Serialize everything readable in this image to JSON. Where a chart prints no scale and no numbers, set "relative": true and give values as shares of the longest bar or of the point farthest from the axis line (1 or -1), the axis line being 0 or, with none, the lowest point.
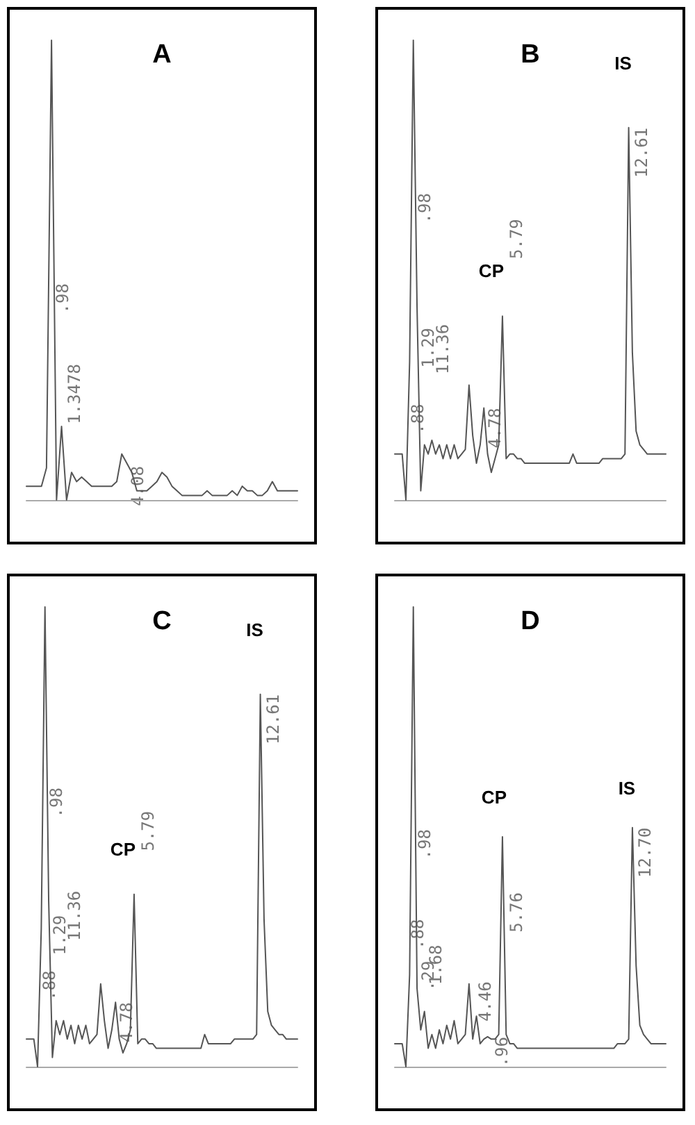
{
  "chart_data": [
    {
      "type": "line",
      "title": "A",
      "relative": true,
      "marker": "none",
      "color": "#555555",
      "categories": [
        null,
        null,
        null,
        null,
        null,
        null,
        null,
        null,
        null,
        null,
        null,
        null,
        null,
        null,
        null,
        null,
        null,
        null,
        null,
        null,
        null,
        null,
        null,
        null,
        null,
        null,
        null,
        null,
        null,
        null,
        null,
        null,
        null,
        null,
        null,
        null,
        null,
        null,
        null,
        null,
        null,
        null,
        null,
        null,
        null,
        null,
        null,
        null,
        null,
        null,
        null,
        null,
        null,
        null,
        null
      ],
      "values": [
        0.03,
        0.03,
        0.03,
        0.03,
        0.07,
        1.0,
        0.0,
        0.16,
        0.0,
        0.06,
        0.04,
        0.05,
        0.04,
        0.03,
        0.03,
        0.03,
        0.03,
        0.03,
        0.04,
        0.1,
        0.08,
        0.06,
        0.02,
        0.02,
        0.02,
        0.03,
        0.04,
        0.06,
        0.05,
        0.03,
        0.02,
        0.01,
        0.01,
        0.01,
        0.01,
        0.01,
        0.02,
        0.01,
        0.01,
        0.01,
        0.01,
        0.02,
        0.01,
        0.03,
        0.02,
        0.02,
        0.01,
        0.01,
        0.02,
        0.04,
        0.02,
        0.02,
        0.02,
        0.02,
        0.02
      ],
      "annotations": [
        ".98",
        "1.3478",
        "4.08"
      ]
    },
    {
      "type": "line",
      "title": "B",
      "relative": true,
      "marker": "none",
      "color": "#555555",
      "categories": [
        null,
        null,
        null,
        null,
        null,
        null,
        null,
        null,
        null,
        null,
        null,
        null,
        null,
        null,
        null,
        null,
        null,
        null,
        null,
        null,
        null,
        null,
        null,
        null,
        null,
        null,
        null,
        null,
        null,
        null,
        null,
        null,
        null,
        null,
        null,
        null,
        null,
        null,
        null,
        null,
        null,
        null,
        null,
        null,
        null,
        null,
        null,
        null,
        null,
        null,
        null,
        null,
        null,
        null,
        null,
        null,
        null,
        null,
        null,
        null,
        null,
        null,
        null,
        null,
        null,
        null,
        null,
        null,
        null,
        null,
        null,
        null,
        null,
        null
      ],
      "values": [
        0.1,
        0.1,
        0.1,
        0.0,
        0.3,
        1.0,
        0.42,
        0.02,
        0.12,
        0.1,
        0.13,
        0.1,
        0.12,
        0.09,
        0.12,
        0.09,
        0.12,
        0.09,
        0.1,
        0.11,
        0.25,
        0.14,
        0.08,
        0.12,
        0.2,
        0.1,
        0.06,
        0.09,
        0.12,
        0.4,
        0.09,
        0.1,
        0.1,
        0.09,
        0.09,
        0.08,
        0.08,
        0.08,
        0.08,
        0.08,
        0.08,
        0.08,
        0.08,
        0.08,
        0.08,
        0.08,
        0.08,
        0.08,
        0.1,
        0.08,
        0.08,
        0.08,
        0.08,
        0.08,
        0.08,
        0.08,
        0.09,
        0.09,
        0.09,
        0.09,
        0.09,
        0.09,
        0.1,
        0.81,
        0.32,
        0.15,
        0.12,
        0.11,
        0.1,
        0.1,
        0.1,
        0.1,
        0.1,
        0.1
      ],
      "annotations": [
        ".88",
        ".98",
        "1.29",
        "11.36",
        "4.78",
        "5.79",
        "CP",
        "12.61",
        "IS"
      ]
    },
    {
      "type": "line",
      "title": "C",
      "relative": true,
      "marker": "none",
      "color": "#555555",
      "categories": [
        null,
        null,
        null,
        null,
        null,
        null,
        null,
        null,
        null,
        null,
        null,
        null,
        null,
        null,
        null,
        null,
        null,
        null,
        null,
        null,
        null,
        null,
        null,
        null,
        null,
        null,
        null,
        null,
        null,
        null,
        null,
        null,
        null,
        null,
        null,
        null,
        null,
        null,
        null,
        null,
        null,
        null,
        null,
        null,
        null,
        null,
        null,
        null,
        null,
        null,
        null,
        null,
        null,
        null,
        null,
        null,
        null,
        null,
        null,
        null,
        null,
        null,
        null,
        null,
        null,
        null,
        null,
        null,
        null,
        null,
        null,
        null,
        null,
        null
      ],
      "values": [
        0.06,
        0.06,
        0.06,
        0.0,
        0.3,
        1.0,
        0.36,
        0.02,
        0.1,
        0.07,
        0.1,
        0.06,
        0.09,
        0.05,
        0.09,
        0.06,
        0.09,
        0.05,
        0.06,
        0.07,
        0.18,
        0.1,
        0.04,
        0.08,
        0.14,
        0.06,
        0.03,
        0.05,
        0.08,
        0.375,
        0.05,
        0.06,
        0.06,
        0.05,
        0.05,
        0.04,
        0.04,
        0.04,
        0.04,
        0.04,
        0.04,
        0.04,
        0.04,
        0.04,
        0.04,
        0.04,
        0.04,
        0.04,
        0.07,
        0.05,
        0.05,
        0.05,
        0.05,
        0.05,
        0.05,
        0.05,
        0.06,
        0.06,
        0.06,
        0.06,
        0.06,
        0.06,
        0.07,
        0.81,
        0.32,
        0.12,
        0.09,
        0.08,
        0.07,
        0.07,
        0.06,
        0.06,
        0.06,
        0.06
      ],
      "annotations": [
        ".88",
        ".98",
        "1.29",
        "11.36",
        "4.78",
        "5.79",
        "CP",
        "12.61",
        "IS"
      ]
    },
    {
      "type": "line",
      "title": "D",
      "relative": true,
      "marker": "none",
      "color": "#555555",
      "categories": [
        null,
        null,
        null,
        null,
        null,
        null,
        null,
        null,
        null,
        null,
        null,
        null,
        null,
        null,
        null,
        null,
        null,
        null,
        null,
        null,
        null,
        null,
        null,
        null,
        null,
        null,
        null,
        null,
        null,
        null,
        null,
        null,
        null,
        null,
        null,
        null,
        null,
        null,
        null,
        null,
        null,
        null,
        null,
        null,
        null,
        null,
        null,
        null,
        null,
        null,
        null,
        null,
        null,
        null,
        null,
        null,
        null,
        null,
        null,
        null,
        null,
        null,
        null,
        null,
        null,
        null,
        null,
        null,
        null,
        null,
        null,
        null,
        null,
        null
      ],
      "values": [
        0.05,
        0.05,
        0.05,
        0.0,
        0.2,
        1.0,
        0.17,
        0.08,
        0.12,
        0.04,
        0.07,
        0.04,
        0.08,
        0.05,
        0.09,
        0.06,
        0.1,
        0.05,
        0.06,
        0.07,
        0.18,
        0.06,
        0.11,
        0.05,
        0.06,
        0.065,
        0.06,
        0.06,
        0.07,
        0.5,
        0.07,
        0.05,
        0.05,
        0.04,
        0.04,
        0.04,
        0.04,
        0.04,
        0.04,
        0.04,
        0.04,
        0.04,
        0.04,
        0.04,
        0.04,
        0.04,
        0.04,
        0.04,
        0.04,
        0.04,
        0.04,
        0.04,
        0.04,
        0.04,
        0.04,
        0.04,
        0.04,
        0.04,
        0.04,
        0.04,
        0.05,
        0.05,
        0.05,
        0.06,
        0.52,
        0.22,
        0.09,
        0.07,
        0.06,
        0.05,
        0.05,
        0.05,
        0.05,
        0.05
      ],
      "annotations": [
        ".88",
        ".98",
        ".29",
        "1.68",
        "4.46",
        ".96",
        "5.76",
        "CP",
        "12.70",
        "IS"
      ]
    }
  ]
}
